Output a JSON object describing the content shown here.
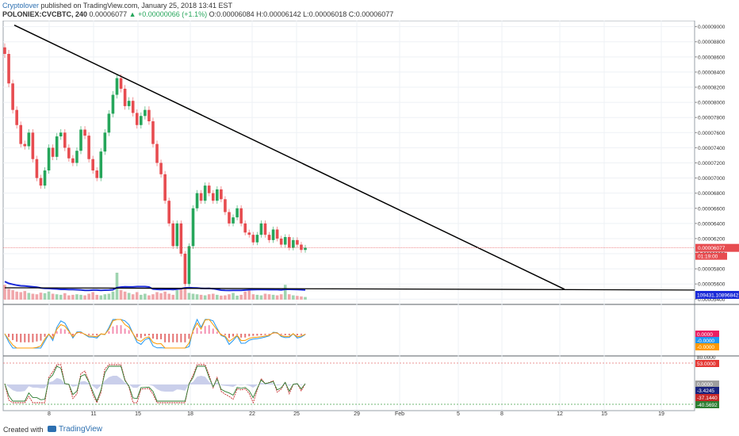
{
  "header": {
    "author": "Cryptolover",
    "published": " published on TradingView.com, January 25, 2018 13:41 EST",
    "symbol": "POLONIEX:CVCBTC, 240",
    "last": " 0.00006077 ",
    "change": "▲ +0.00000066 (+1.1%)",
    "ohlc": " O:0.00006084 H:0.00006142 L:0.00006018 C:0.00006077"
  },
  "footer": {
    "created_with": "Created with",
    "brand": "TradingView"
  },
  "chart_data": {
    "type": "candlestick",
    "symbol": "POLONIEX:CVCBTC",
    "interval": "240",
    "x_tick_labels": [
      "8",
      "11",
      "15",
      "18",
      "22",
      "25",
      "29",
      "Feb",
      "5",
      "8",
      "12",
      "15",
      "19"
    ],
    "y_tick_labels": [
      "0.00009000",
      "0.00008800",
      "0.00008600",
      "0.00008400",
      "0.00008200",
      "0.00008000",
      "0.00007800",
      "0.00007600",
      "0.00007400",
      "0.00007200",
      "0.00007000",
      "0.00006800",
      "0.00006600",
      "0.00006400",
      "0.00006200",
      "0.00006000",
      "0.00005800",
      "0.00005600",
      "0.00005400"
    ],
    "ylim": [
      5.33e-05,
      9.08e-05
    ],
    "price_levels": [
      9e-05,
      8.8e-05,
      8.6e-05,
      8.4e-05,
      8.2e-05,
      8e-05,
      7.8e-05,
      7.6e-05,
      7.4e-05,
      7.2e-05,
      7e-05,
      6.8e-05,
      6.6e-05,
      6.4e-05,
      6.2e-05,
      6e-05,
      5.8e-05,
      5.6e-05,
      5.4e-05
    ],
    "current_price": 6.077e-05,
    "current_price_label": "0.00006077",
    "countdown_label": "01:19:00",
    "close_series": [
      8.64e-05,
      8.25e-05,
      7.9e-05,
      7.7e-05,
      7.45e-05,
      7.42e-05,
      7.6e-05,
      7.25e-05,
      7e-05,
      6.9e-05,
      7.1e-05,
      7.4e-05,
      7.28e-05,
      7.55e-05,
      7.6e-05,
      7.4e-05,
      7.26e-05,
      7.2e-05,
      7.36e-05,
      7.64e-05,
      7.56e-05,
      7.25e-05,
      7.1e-05,
      7e-05,
      7.35e-05,
      7.6e-05,
      7.85e-05,
      8.1e-05,
      8.32e-05,
      8.18e-05,
      7.95e-05,
      8.02e-05,
      7.86e-05,
      7.7e-05,
      7.82e-05,
      7.9e-05,
      7.75e-05,
      7.45e-05,
      7.2e-05,
      7.05e-05,
      6.7e-05,
      6.4e-05,
      6.1e-05,
      6.4e-05,
      6e-05,
      5.6e-05,
      6.1e-05,
      6.6e-05,
      6.8e-05,
      6.7e-05,
      6.9e-05,
      6.8e-05,
      6.7e-05,
      6.85e-05,
      6.72e-05,
      6.55e-05,
      6.4e-05,
      6.48e-05,
      6.6e-05,
      6.4e-05,
      6.28e-05,
      6.25e-05,
      6.15e-05,
      6.25e-05,
      6.4e-05,
      6.25e-05,
      6.18e-05,
      6.32e-05,
      6.2e-05,
      6.12e-05,
      6.22e-05,
      6.08e-05,
      6.18e-05,
      6.12e-05,
      6.05e-05,
      6.08e-05
    ],
    "volume_label": "109431.10896842",
    "volume_series": [
      0.55,
      0.4,
      0.35,
      0.3,
      0.28,
      0.32,
      0.25,
      0.22,
      0.2,
      0.26,
      0.24,
      0.3,
      0.22,
      0.2,
      0.18,
      0.24,
      0.16,
      0.18,
      0.2,
      0.18,
      0.16,
      0.22,
      0.28,
      0.18,
      0.16,
      0.2,
      0.22,
      0.3,
      1.0,
      0.35,
      0.3,
      0.25,
      0.2,
      0.28,
      0.18,
      0.22,
      0.16,
      0.2,
      0.28,
      0.24,
      0.3,
      0.22,
      0.18,
      0.35,
      0.4,
      0.45,
      0.25,
      0.22,
      0.2,
      0.18,
      0.16,
      0.2,
      0.22,
      0.18,
      0.15,
      0.16,
      0.2,
      0.25,
      0.15,
      0.18,
      0.3,
      0.35,
      0.2,
      0.18,
      0.16,
      0.22,
      0.2,
      0.18,
      0.16,
      0.2,
      0.55,
      0.2,
      0.16,
      0.14,
      0.12,
      0.1
    ],
    "trendlines": [
      {
        "name": "descending",
        "from": [
          "start",
          9.02e-05
        ],
        "to": [
          "Feb 11",
          5.53e-05
        ]
      },
      {
        "name": "support",
        "from": [
          "start",
          5.55e-05
        ],
        "to": [
          "end",
          5.52e-05
        ]
      }
    ],
    "macd": {
      "labels": [
        "0.0000",
        "-0.0000",
        "-0.0000"
      ],
      "colors": [
        "#e91e63",
        "#2196f3",
        "#ff9800"
      ]
    },
    "oscillator": {
      "scale_labels": [
        "80.0000",
        "0.0000"
      ],
      "value_labels": [
        "53.0000",
        "0.0000",
        "-3.4245",
        "-37.1440",
        "-40.5692"
      ],
      "colors": [
        "#e53935",
        "#9e9e9e",
        "#1a237e",
        "#c62828",
        "#2e7d32"
      ]
    },
    "colors": {
      "up": "#26a65b",
      "down": "#e74c50",
      "ma": "#1a2ad8",
      "trendline": "#000000",
      "grid": "#eef1f5"
    },
    "grid": true
  }
}
